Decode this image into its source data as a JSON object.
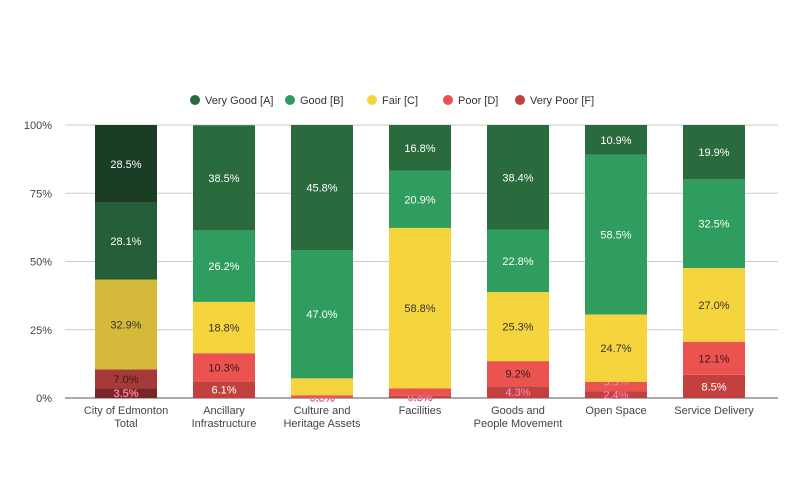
{
  "chart_data": {
    "type": "bar",
    "stacked": true,
    "normalized": true,
    "title": "",
    "xlabel": "",
    "ylabel": "",
    "ylim": [
      0,
      100
    ],
    "yticks": [
      "0%",
      "25%",
      "50%",
      "75%",
      "100%"
    ],
    "grid": true,
    "legend_position": "top",
    "categories": [
      [
        "City of Edmonton",
        "Total"
      ],
      [
        "Ancillary",
        "Infrastructure"
      ],
      [
        "Culture and",
        "Heritage Assets"
      ],
      [
        "Facilities"
      ],
      [
        "Goods and",
        "People Movement"
      ],
      [
        "Open Space"
      ],
      [
        "Service Delivery"
      ]
    ],
    "series": [
      {
        "name": "Very Good [A]",
        "color": "#2a6b3e",
        "values": [
          28.5,
          38.5,
          45.8,
          16.8,
          38.4,
          10.9,
          19.9
        ]
      },
      {
        "name": "Good [B]",
        "color": "#2f9d5d",
        "values": [
          28.1,
          26.2,
          47.0,
          20.9,
          22.8,
          58.5,
          32.5
        ]
      },
      {
        "name": "Fair [C]",
        "color": "#f6d43e",
        "values": [
          32.9,
          18.8,
          6.2,
          58.8,
          25.3,
          24.7,
          27.0
        ]
      },
      {
        "name": "Poor [D]",
        "color": "#ea5350",
        "values": [
          7.0,
          10.3,
          0.7,
          2.7,
          9.2,
          3.5,
          12.1
        ]
      },
      {
        "name": "Very Poor [F]",
        "color": "#c2413f",
        "values": [
          3.5,
          6.1,
          0.3,
          0.8,
          4.3,
          2.4,
          8.5
        ]
      }
    ],
    "highlight_colors": [
      "#1b3d25",
      "#255e38",
      "#d5b93a",
      "#a63a38",
      "#7a2525"
    ]
  }
}
